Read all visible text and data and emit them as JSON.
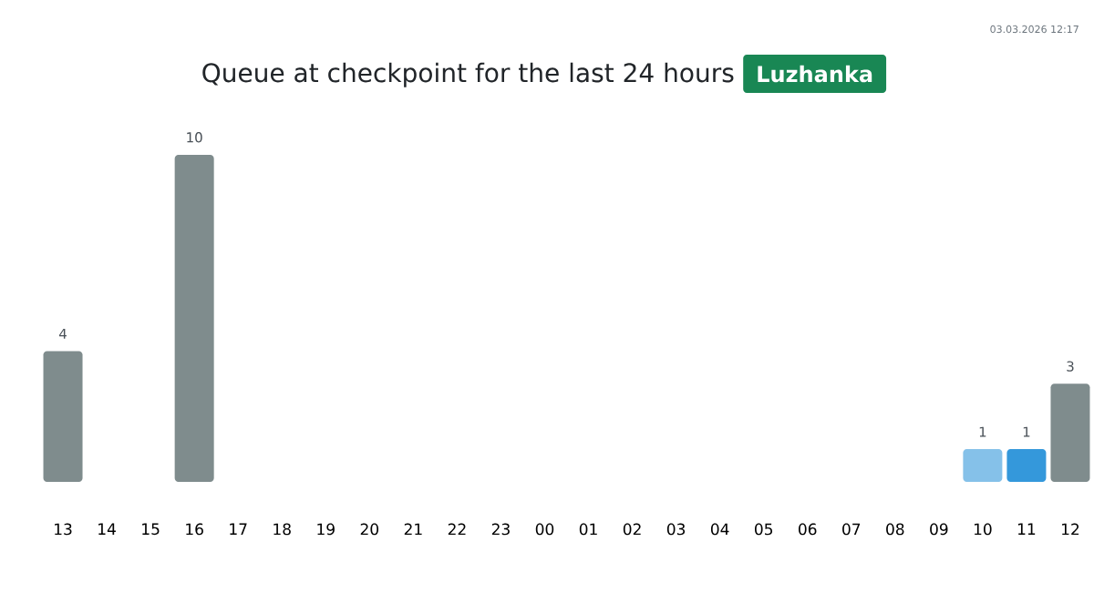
{
  "chart_data": {
    "type": "bar",
    "title": "Queue at checkpoint for the last 24 hours",
    "subtitle": "Luzhanka",
    "annotations": [
      "03.03.2026 12:17"
    ],
    "categories": [
      "13",
      "14",
      "15",
      "16",
      "17",
      "18",
      "19",
      "20",
      "21",
      "22",
      "23",
      "00",
      "01",
      "02",
      "03",
      "04",
      "05",
      "06",
      "07",
      "08",
      "09",
      "10",
      "11",
      "12"
    ],
    "values": [
      4,
      0,
      0,
      10,
      0,
      0,
      0,
      0,
      0,
      0,
      0,
      0,
      0,
      0,
      0,
      0,
      0,
      0,
      0,
      0,
      0,
      1,
      1,
      3
    ],
    "colors": [
      "#7f8c8d",
      "#7f8c8d",
      "#7f8c8d",
      "#7f8c8d",
      "#7f8c8d",
      "#7f8c8d",
      "#7f8c8d",
      "#7f8c8d",
      "#7f8c8d",
      "#7f8c8d",
      "#7f8c8d",
      "#7f8c8d",
      "#7f8c8d",
      "#7f8c8d",
      "#7f8c8d",
      "#7f8c8d",
      "#7f8c8d",
      "#7f8c8d",
      "#7f8c8d",
      "#7f8c8d",
      "#7f8c8d",
      "#85c1e9",
      "#3498db",
      "#7f8c8d"
    ],
    "value_labels": [
      "4",
      null,
      null,
      "10",
      null,
      null,
      null,
      null,
      null,
      null,
      null,
      null,
      null,
      null,
      null,
      null,
      null,
      null,
      null,
      null,
      null,
      "1",
      "1",
      "3"
    ]
  }
}
